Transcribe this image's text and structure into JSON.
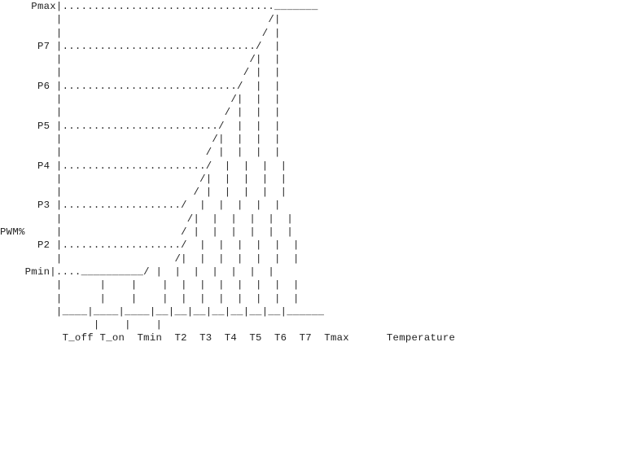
{
  "diagram": {
    "lines": [
      "     Pmax|.................................._______",
      "         |                                 /|",
      "         |                                / |",
      "      P7 |.............................../  |",
      "         |                              /|  |",
      "         |                             / |  |",
      "      P6 |............................/  |  |",
      "         |                           /|  |  |",
      "         |                          / |  |  |",
      "      P5 |........................./  |  |  |",
      "         |                        /|  |  |  |",
      "         |                       / |  |  |  |",
      "      P4 |......................./  |  |  |  |",
      "         |                      /|  |  |  |  |",
      "         |                     / |  |  |  |  |",
      "      P3 |.................../  |  |  |  |  |",
      "         |                    /|  |  |  |  |  |",
      "PWM%     |                   / |  |  |  |  |  |",
      "      P2 |.................../  |  |  |  |  |  |",
      "         |                  /|  |  |  |  |  |  |",
      "    Pmin|....__________/ |  |  |  |  |  |  |",
      "         |      |    |    |  |  |  |  |  |  |  |",
      "         |      |    |    |  |  |  |  |  |  |  |",
      "         |____|____|____|__|__|__|__|__|__|__|______",
      "               |    |    |",
      "          T_off T_on  Tmin  T2  T3  T4  T5  T6  T7  Tmax      Temperature"
    ]
  }
}
